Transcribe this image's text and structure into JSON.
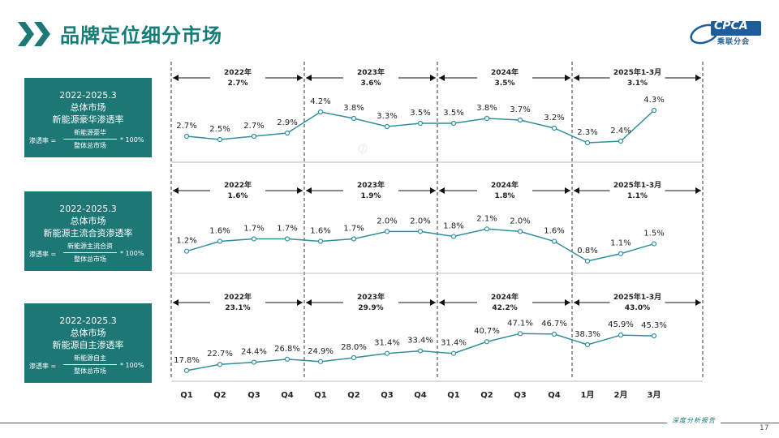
{
  "title": "品牌定位细分市场",
  "logo": {
    "text": "CPCA",
    "sub": "乘联分会",
    "icon": "cpca-logo-icon"
  },
  "footer": {
    "text": "深度分析报告",
    "page": "17"
  },
  "colors": {
    "accent": "#1d7774",
    "line": "#2f8f9d",
    "title": "#147d78"
  },
  "categories": [
    "Q1",
    "Q2",
    "Q3",
    "Q4",
    "Q1",
    "Q2",
    "Q3",
    "Q4",
    "Q1",
    "Q2",
    "Q3",
    "Q4",
    "1月",
    "2月",
    "3月"
  ],
  "panels": [
    {
      "box": {
        "line1": "2022-2025.3",
        "line2": "总体市场",
        "line3": "新能源豪华渗透率",
        "f_left": "渗透率 =",
        "f_num": "新能源豪华",
        "f_den": "整体总市场",
        "f_right": "* 100%"
      },
      "periods": [
        {
          "year": "2022年",
          "value": "2.7%"
        },
        {
          "year": "2023年",
          "value": "3.6%"
        },
        {
          "year": "2024年",
          "value": "3.5%"
        },
        {
          "year": "2025年1-3月",
          "value": "3.1%"
        }
      ],
      "labels": [
        "2.7%",
        "2.5%",
        "2.7%",
        "2.9%",
        "4.2%",
        "3.8%",
        "3.3%",
        "3.5%",
        "3.5%",
        "3.8%",
        "3.7%",
        "3.2%",
        "2.3%",
        "2.4%",
        "4.3%"
      ]
    },
    {
      "box": {
        "line1": "2022-2025.3",
        "line2": "总体市场",
        "line3": "新能源主流合资渗透率",
        "f_left": "渗透率 =",
        "f_num": "新能源主流合资",
        "f_den": "整体总市场",
        "f_right": "* 100%"
      },
      "periods": [
        {
          "year": "2022年",
          "value": "1.6%"
        },
        {
          "year": "2023年",
          "value": "1.9%"
        },
        {
          "year": "2024年",
          "value": "1.8%"
        },
        {
          "year": "2025年1-3月",
          "value": "1.1%"
        }
      ],
      "labels": [
        "1.2%",
        "1.6%",
        "1.7%",
        "1.7%",
        "1.6%",
        "1.7%",
        "2.0%",
        "2.0%",
        "1.8%",
        "2.1%",
        "2.0%",
        "1.6%",
        "0.8%",
        "1.1%",
        "1.5%"
      ]
    },
    {
      "box": {
        "line1": "2022-2025.3",
        "line2": "总体市场",
        "line3": "新能源自主渗透率",
        "f_left": "渗透率 =",
        "f_num": "新能源自主",
        "f_den": "整体总市场",
        "f_right": "* 100%"
      },
      "periods": [
        {
          "year": "2022年",
          "value": "23.1%"
        },
        {
          "year": "2023年",
          "value": "29.9%"
        },
        {
          "year": "2024年",
          "value": "42.2%"
        },
        {
          "year": "2025年1-3月",
          "value": "43.0%"
        }
      ],
      "labels": [
        "17.8%",
        "22.7%",
        "24.4%",
        "26.8%",
        "24.9%",
        "28.0%",
        "31.4%",
        "33.4%",
        "31.4%",
        "40.7%",
        "47.1%",
        "46.7%",
        "38.3%",
        "45.9%",
        "45.3%"
      ]
    }
  ],
  "chart_data": [
    {
      "type": "line",
      "title": "新能源豪华渗透率",
      "categories": [
        "Q1",
        "Q2",
        "Q3",
        "Q4",
        "Q1",
        "Q2",
        "Q3",
        "Q4",
        "Q1",
        "Q2",
        "Q3",
        "Q4",
        "1月",
        "2月",
        "3月"
      ],
      "values": [
        2.7,
        2.5,
        2.7,
        2.9,
        4.2,
        3.8,
        3.3,
        3.5,
        3.5,
        3.8,
        3.7,
        3.2,
        2.3,
        2.4,
        4.3
      ],
      "ylim": [
        1.5,
        5.0
      ]
    },
    {
      "type": "line",
      "title": "新能源主流合资渗透率",
      "categories": [
        "Q1",
        "Q2",
        "Q3",
        "Q4",
        "Q1",
        "Q2",
        "Q3",
        "Q4",
        "Q1",
        "Q2",
        "Q3",
        "Q4",
        "1月",
        "2月",
        "3月"
      ],
      "values": [
        1.2,
        1.6,
        1.7,
        1.7,
        1.6,
        1.7,
        2.0,
        2.0,
        1.8,
        2.1,
        2.0,
        1.6,
        0.8,
        1.1,
        1.5
      ],
      "ylim": [
        0.5,
        2.8
      ]
    },
    {
      "type": "line",
      "title": "新能源自主渗透率",
      "categories": [
        "Q1",
        "Q2",
        "Q3",
        "Q4",
        "Q1",
        "Q2",
        "Q3",
        "Q4",
        "Q1",
        "Q2",
        "Q3",
        "Q4",
        "1月",
        "2月",
        "3月"
      ],
      "values": [
        17.8,
        22.7,
        24.4,
        26.8,
        24.9,
        28.0,
        31.4,
        33.4,
        31.4,
        40.7,
        47.1,
        46.7,
        38.3,
        45.9,
        45.3
      ],
      "ylim": [
        10,
        55
      ]
    }
  ]
}
